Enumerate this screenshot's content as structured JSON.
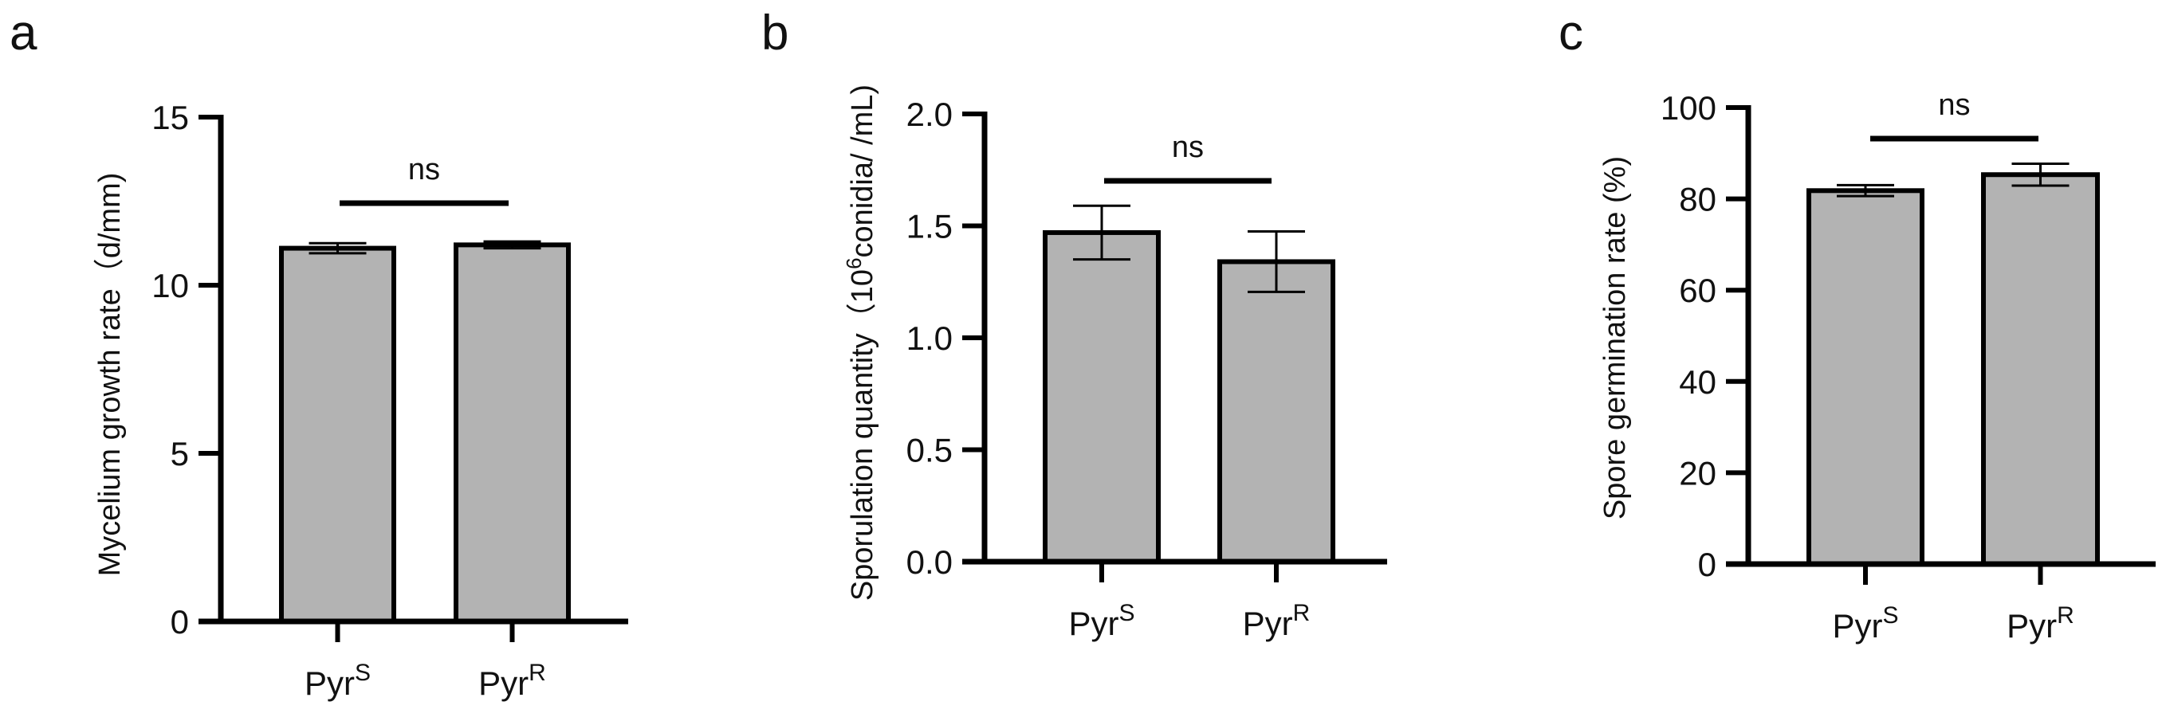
{
  "chart_data": [
    {
      "type": "bar",
      "panel_label": "a",
      "title": "",
      "xlabel": "",
      "ylabel": "Mycelium growth rate（d/mm)",
      "ylim": [
        0,
        15
      ],
      "yticks": [
        0,
        5,
        10,
        15
      ],
      "ytick_labels": [
        "0",
        "5",
        "10",
        "15"
      ],
      "categories": [
        {
          "base": "Pyr",
          "sup": "S"
        },
        {
          "base": "Pyr",
          "sup": "R"
        }
      ],
      "values": [
        11.1,
        11.2
      ],
      "errors": [
        0.15,
        0.1
      ],
      "significance": "ns",
      "bar_color": "#b3b3b3",
      "grid": false
    },
    {
      "type": "bar",
      "panel_label": "b",
      "title": "",
      "xlabel": "",
      "ylabel_parts": {
        "prefix": "Sporulation quantity（10",
        "sup": "6",
        "suffix": "conidia/ /mL)"
      },
      "ylim": [
        0,
        2.0
      ],
      "yticks": [
        0,
        0.5,
        1.0,
        1.5,
        2.0
      ],
      "ytick_labels": [
        "0.0",
        "0.5",
        "1.0",
        "1.5",
        "2.0"
      ],
      "categories": [
        {
          "base": "Pyr",
          "sup": "S"
        },
        {
          "base": "Pyr",
          "sup": "R"
        }
      ],
      "values": [
        1.47,
        1.34
      ],
      "errors": [
        0.12,
        0.135
      ],
      "significance": "ns",
      "bar_color": "#b3b3b3",
      "grid": false
    },
    {
      "type": "bar",
      "panel_label": "c",
      "title": "",
      "xlabel": "",
      "ylabel": "Spore germination rate (%)",
      "ylim": [
        0,
        100
      ],
      "yticks": [
        0,
        20,
        40,
        60,
        80,
        100
      ],
      "ytick_labels": [
        "0",
        "20",
        "40",
        "60",
        "80",
        "100"
      ],
      "categories": [
        {
          "base": "Pyr",
          "sup": "S"
        },
        {
          "base": "Pyr",
          "sup": "R"
        }
      ],
      "values": [
        81.8,
        85.3
      ],
      "errors": [
        1.2,
        2.4
      ],
      "significance": "ns",
      "bar_color": "#b3b3b3",
      "grid": false
    }
  ]
}
